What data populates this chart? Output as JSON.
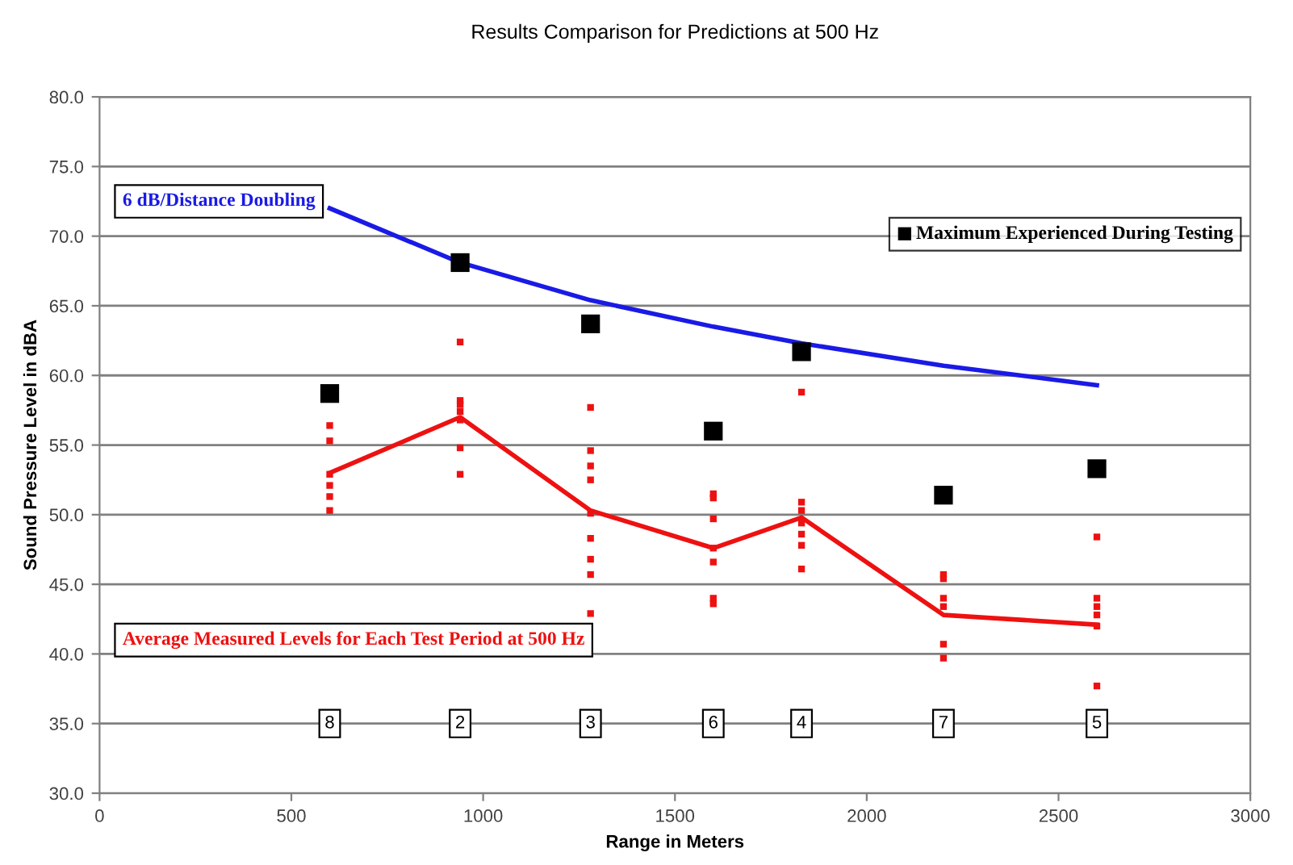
{
  "chart_data": {
    "type": "scatter",
    "title": "Results Comparison for Predictions at 500 Hz",
    "xlabel": "Range in Meters",
    "ylabel": "Sound Pressure Level in dBA",
    "xlim": [
      0,
      3000
    ],
    "xticks": [
      0,
      500,
      1000,
      1500,
      2000,
      2500,
      3000
    ],
    "ylim": [
      30,
      80
    ],
    "yticks": [
      {
        "value": 30,
        "label": "30.0"
      },
      {
        "value": 35,
        "label": "35.0"
      },
      {
        "value": 40,
        "label": "40.0"
      },
      {
        "value": 45,
        "label": "45.0"
      },
      {
        "value": 50,
        "label": "50.0"
      },
      {
        "value": 55,
        "label": "55.0"
      },
      {
        "value": 60,
        "label": "60.0"
      },
      {
        "value": 65,
        "label": "65.0"
      },
      {
        "value": 70,
        "label": "70.0"
      },
      {
        "value": 75,
        "label": "75.0"
      },
      {
        "value": 80,
        "label": "80.0"
      }
    ],
    "grid": "y",
    "legend": "top right",
    "series": [
      {
        "color": "#ee1111",
        "marker": "square",
        "x": [
          600,
          600,
          600,
          600,
          600,
          600,
          940,
          940,
          940,
          940,
          940,
          940,
          940,
          1280,
          1280,
          1280,
          1280,
          1280,
          1280,
          1280,
          1280,
          1280,
          1600,
          1600,
          1600,
          1600,
          1600,
          1600,
          1600,
          1830,
          1830,
          1830,
          1830,
          1830,
          1830,
          1830,
          2200,
          2200,
          2200,
          2200,
          2200,
          2200,
          2600,
          2600,
          2600,
          2600,
          2600,
          2600
        ],
        "values": [
          56.4,
          55.3,
          52.9,
          52.1,
          51.3,
          50.3,
          62.4,
          58.2,
          57.9,
          57.4,
          56.8,
          54.8,
          52.9,
          57.7,
          54.6,
          53.5,
          52.5,
          50.1,
          48.3,
          46.8,
          45.7,
          42.9,
          51.5,
          51.2,
          49.7,
          47.6,
          46.6,
          44.0,
          43.6,
          58.8,
          50.9,
          50.3,
          49.4,
          48.6,
          47.8,
          46.1,
          45.7,
          45.4,
          44.0,
          43.4,
          40.7,
          39.7,
          48.4,
          44.0,
          43.4,
          42.8,
          42.0,
          37.7
        ]
      },
      {
        "type": "line",
        "name": "Average Measured Levels for Each Test Period at 500 Hz",
        "color": "#ee1111",
        "x": [
          600,
          940,
          1280,
          1600,
          1830,
          2200,
          2600
        ],
        "values": [
          53.0,
          57.0,
          50.3,
          47.6,
          49.8,
          42.8,
          42.1
        ]
      },
      {
        "type": "line",
        "name": "6 dB/Distance Doubling",
        "color": "#1a1ae6",
        "x": [
          600,
          940,
          1280,
          1600,
          1830,
          2200,
          2600
        ],
        "values": [
          72.0,
          68.1,
          65.4,
          63.5,
          62.3,
          60.7,
          59.3
        ]
      },
      {
        "name": "Maximum Experienced During Testing",
        "color": "#000000",
        "marker": "square",
        "x": [
          600,
          940,
          1280,
          1600,
          1830,
          2200,
          2600
        ],
        "values": [
          58.7,
          68.1,
          63.7,
          56.0,
          61.7,
          51.4,
          53.3
        ]
      }
    ],
    "annotations": [
      {
        "text": "8",
        "x": 600,
        "y": 35
      },
      {
        "text": "2",
        "x": 940,
        "y": 35
      },
      {
        "text": "3",
        "x": 1280,
        "y": 35
      },
      {
        "text": "6",
        "x": 1600,
        "y": 35
      },
      {
        "text": "4",
        "x": 1830,
        "y": 35
      },
      {
        "text": "7",
        "x": 2200,
        "y": 35
      },
      {
        "text": "5",
        "x": 2600,
        "y": 35
      }
    ]
  }
}
